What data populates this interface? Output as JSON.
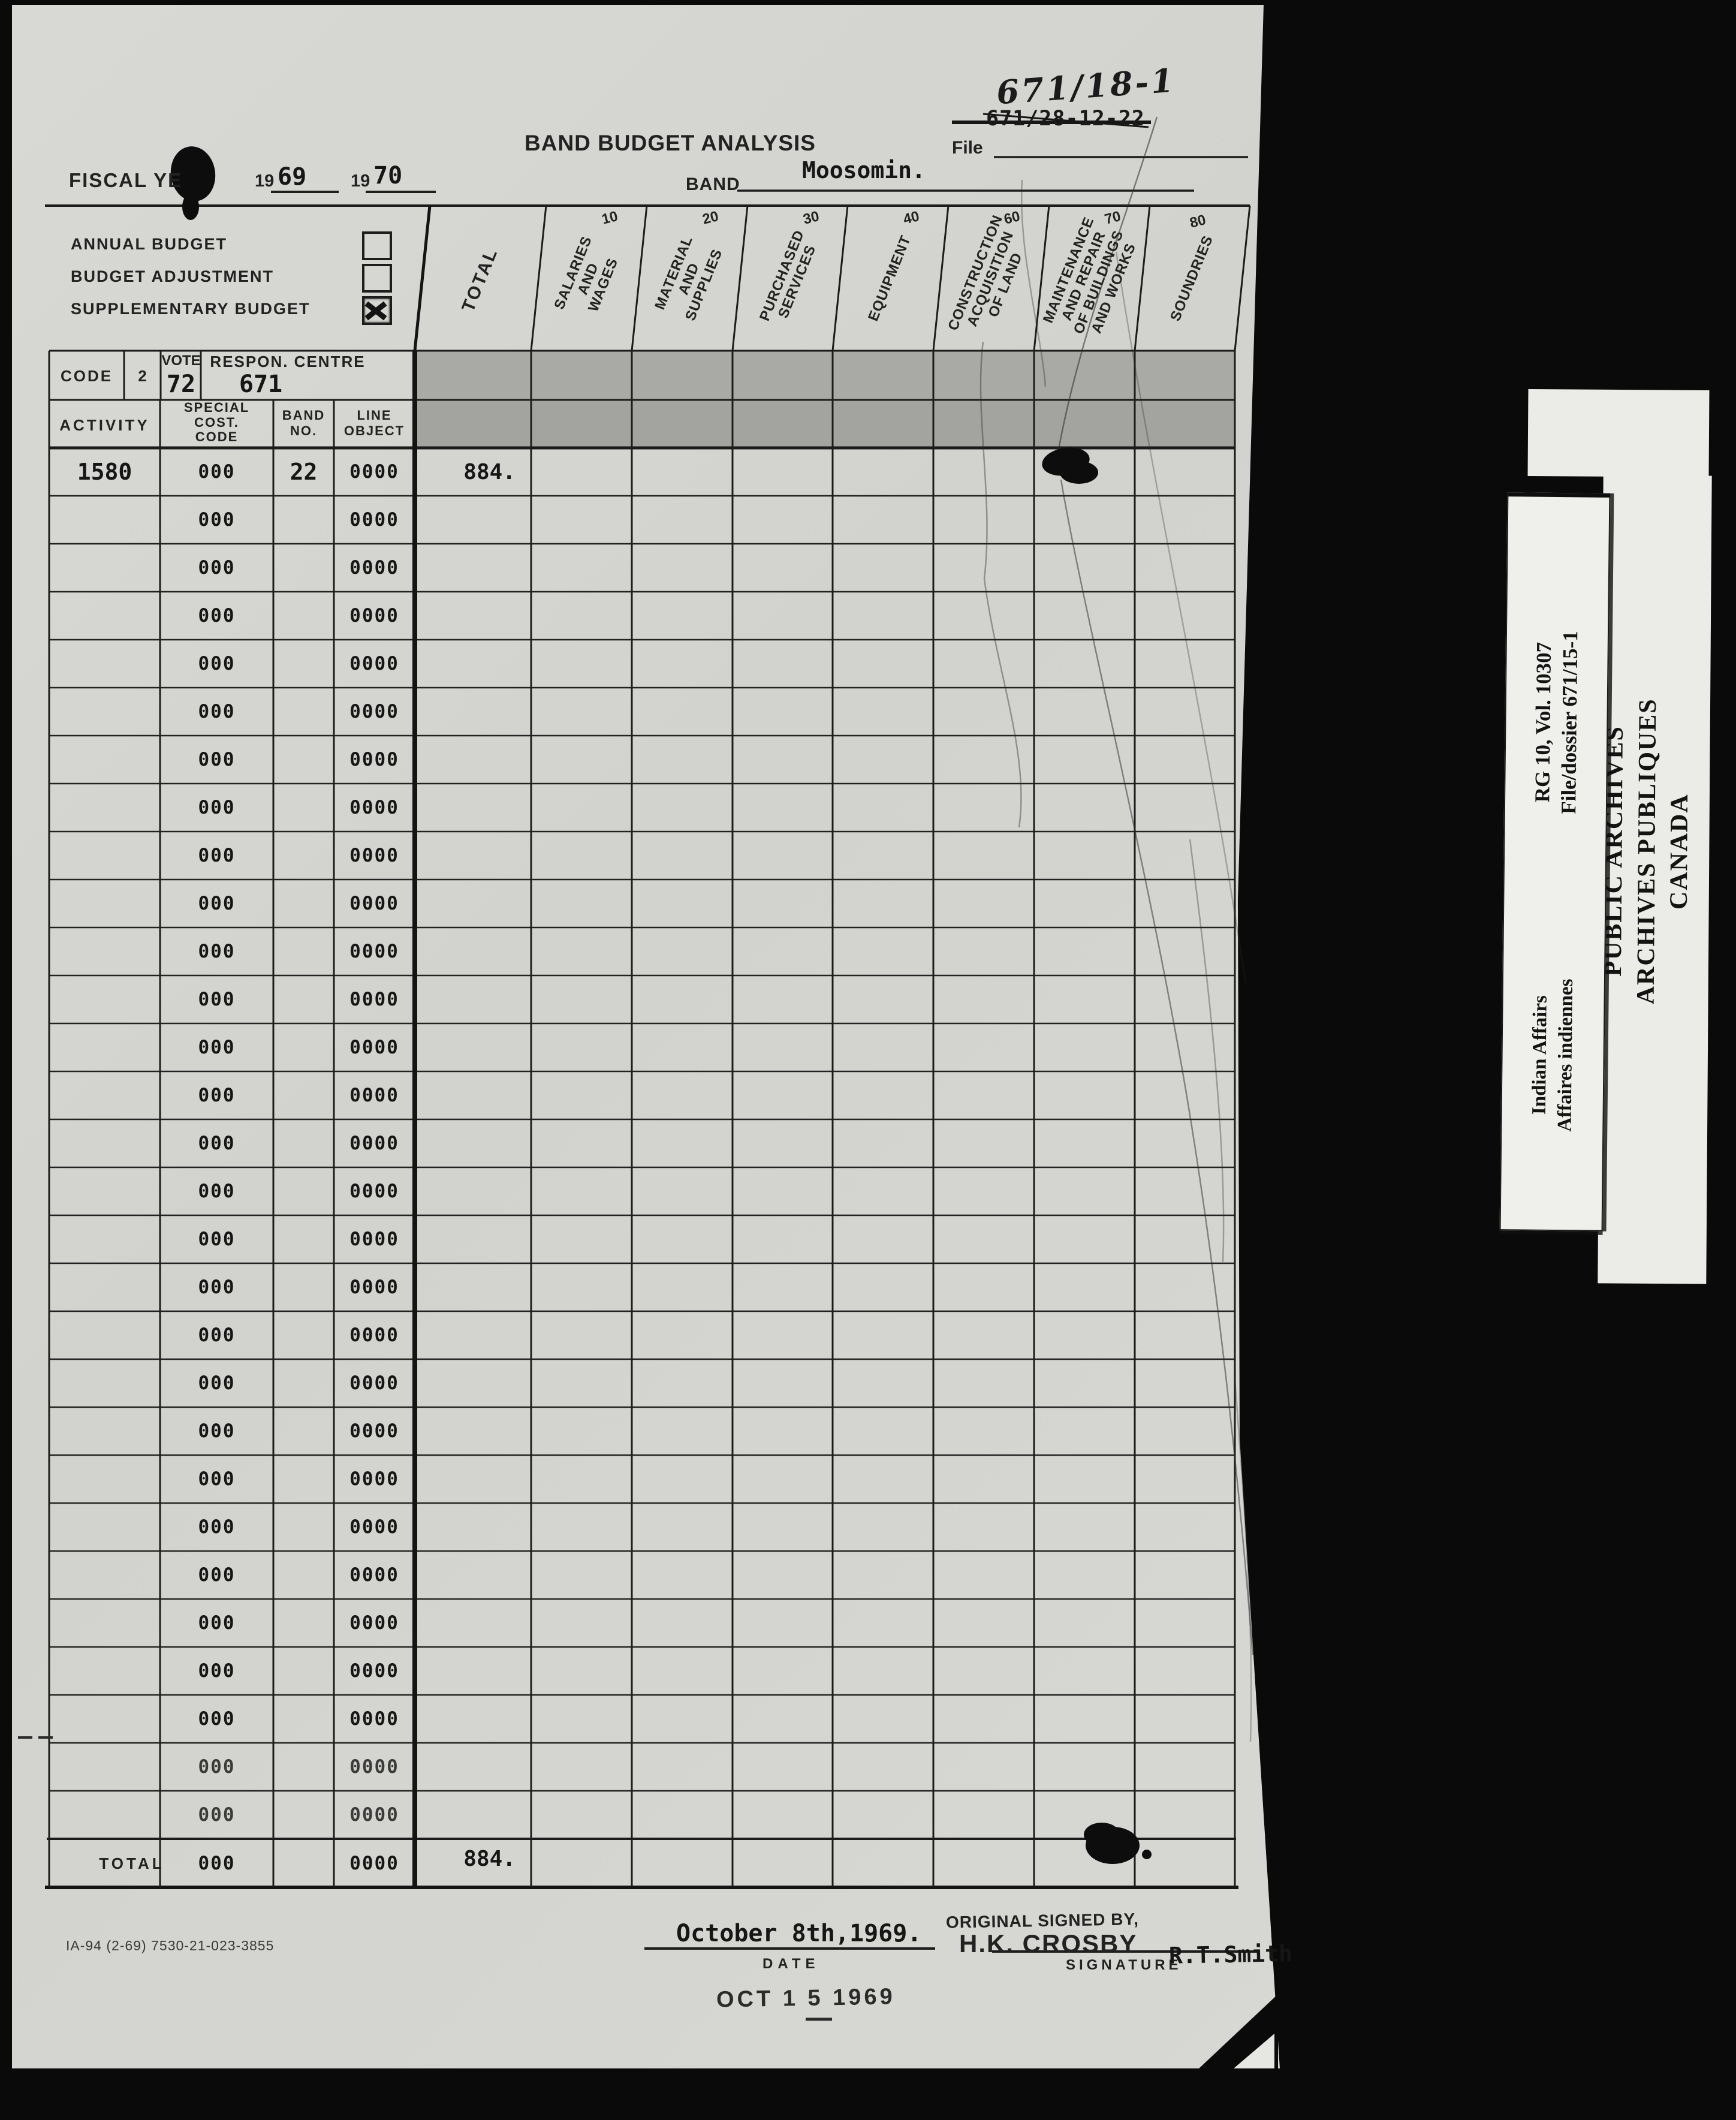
{
  "header": {
    "fiscal_label": "FISCAL YE",
    "year1_prefix": "19",
    "year1": "69",
    "year2_prefix": "19",
    "year2": "70",
    "title": "BAND BUDGET ANALYSIS",
    "file_label": "File",
    "file_handwritten": "671/18-1",
    "file_crossed_out": "671/28-12-22",
    "band_label": "BAND",
    "band_value": "Moosomin.",
    "checkboxes": [
      {
        "label": "ANNUAL BUDGET",
        "checked": false
      },
      {
        "label": "BUDGET ADJUSTMENT",
        "checked": false
      },
      {
        "label": "SUPPLEMENTARY BUDGET",
        "checked": true
      }
    ]
  },
  "code_row": {
    "code_label": "CODE",
    "code_value": "2",
    "vote_label": "VOTE",
    "vote_value": "72",
    "respon_label": "RESPON. CENTRE",
    "respon_value": "671"
  },
  "columns": {
    "activity": "ACTIVITY",
    "special": "SPECIAL\nCOST.\nCODE",
    "band_no": "BAND\nNO.",
    "line_object": "LINE\nOBJECT",
    "total": "TOTAL",
    "value_columns": [
      {
        "num": "10",
        "label": "SALARIES\nAND\nWAGES"
      },
      {
        "num": "20",
        "label": "MATERIAL\nAND\nSUPPLIES"
      },
      {
        "num": "30",
        "label": "PURCHASED\nSERVICES"
      },
      {
        "num": "40",
        "label": "EQUIPMENT"
      },
      {
        "num": "60",
        "label": "CONSTRUCTION\nACQUISITION\nOF LAND"
      },
      {
        "num": "70",
        "label": "MAINTENANCE\nAND REPAIR\nOF BUILDINGS\nAND WORKS"
      },
      {
        "num": "80",
        "label": "SOUNDRIES"
      }
    ]
  },
  "table": {
    "rows": [
      {
        "activity": "1580",
        "special": "000",
        "band": "22",
        "line": "0000",
        "total": "884."
      },
      {
        "activity": "",
        "special": "000",
        "band": "",
        "line": "0000",
        "total": ""
      },
      {
        "activity": "",
        "special": "000",
        "band": "",
        "line": "0000",
        "total": ""
      },
      {
        "activity": "",
        "special": "000",
        "band": "",
        "line": "0000",
        "total": ""
      },
      {
        "activity": "",
        "special": "000",
        "band": "",
        "line": "0000",
        "total": ""
      },
      {
        "activity": "",
        "special": "000",
        "band": "",
        "line": "0000",
        "total": ""
      },
      {
        "activity": "",
        "special": "000",
        "band": "",
        "line": "0000",
        "total": ""
      },
      {
        "activity": "",
        "special": "000",
        "band": "",
        "line": "0000",
        "total": ""
      },
      {
        "activity": "",
        "special": "000",
        "band": "",
        "line": "0000",
        "total": ""
      },
      {
        "activity": "",
        "special": "000",
        "band": "",
        "line": "0000",
        "total": ""
      },
      {
        "activity": "",
        "special": "000",
        "band": "",
        "line": "0000",
        "total": ""
      },
      {
        "activity": "",
        "special": "000",
        "band": "",
        "line": "0000",
        "total": ""
      },
      {
        "activity": "",
        "special": "000",
        "band": "",
        "line": "0000",
        "total": ""
      },
      {
        "activity": "",
        "special": "000",
        "band": "",
        "line": "0000",
        "total": ""
      },
      {
        "activity": "",
        "special": "000",
        "band": "",
        "line": "0000",
        "total": ""
      },
      {
        "activity": "",
        "special": "000",
        "band": "",
        "line": "0000",
        "total": ""
      },
      {
        "activity": "",
        "special": "000",
        "band": "",
        "line": "0000",
        "total": ""
      },
      {
        "activity": "",
        "special": "000",
        "band": "",
        "line": "0000",
        "total": ""
      },
      {
        "activity": "",
        "special": "000",
        "band": "",
        "line": "0000",
        "total": ""
      },
      {
        "activity": "",
        "special": "000",
        "band": "",
        "line": "0000",
        "total": ""
      },
      {
        "activity": "",
        "special": "000",
        "band": "",
        "line": "0000",
        "total": ""
      },
      {
        "activity": "",
        "special": "000",
        "band": "",
        "line": "0000",
        "total": ""
      },
      {
        "activity": "",
        "special": "000",
        "band": "",
        "line": "0000",
        "total": ""
      },
      {
        "activity": "",
        "special": "000",
        "band": "",
        "line": "0000",
        "total": ""
      },
      {
        "activity": "",
        "special": "000",
        "band": "",
        "line": "0000",
        "total": ""
      },
      {
        "activity": "",
        "special": "000",
        "band": "",
        "line": "0000",
        "total": ""
      },
      {
        "activity": "",
        "special": "000",
        "band": "",
        "line": "0000",
        "total": ""
      },
      {
        "activity": "",
        "special": "000",
        "band": "",
        "line": "0000",
        "total": ""
      },
      {
        "activity": "",
        "special": "000",
        "band": "",
        "line": "0000",
        "total": ""
      }
    ],
    "total_row": {
      "label": "TOTAL",
      "special": "000",
      "band": "",
      "line": "0000",
      "total": "884."
    }
  },
  "footer": {
    "form_number": "IA-94 (2-69) 7530-21-023-3855",
    "date_value": "October 8th,1969.",
    "date_label": "DATE",
    "original_signed": "ORIGINAL SIGNED BY,",
    "signature_name": "H.K. CROSBY",
    "signature_label": "SIGNATURE",
    "signature_typed": "R.T.Smith",
    "received_stamp": "OCT 1 5 1969"
  },
  "archive_card": {
    "org_line1": "PUBLIC ARCHIVES",
    "org_line2": "ARCHIVES PUBLIQUES",
    "org_line3": "CANADA",
    "rg_line": "RG 10, Vol. 10307",
    "dossier_line": "File/dossier 671/15-1",
    "dept_en": "Indian Affairs",
    "dept_fr": "Affaires indiennes"
  },
  "colors": {
    "paper": "#d5d5d1",
    "ink": "#161616",
    "shaded_band": "#a8a8a4",
    "background": "#0a0a0a",
    "card": "#ebebe7"
  }
}
